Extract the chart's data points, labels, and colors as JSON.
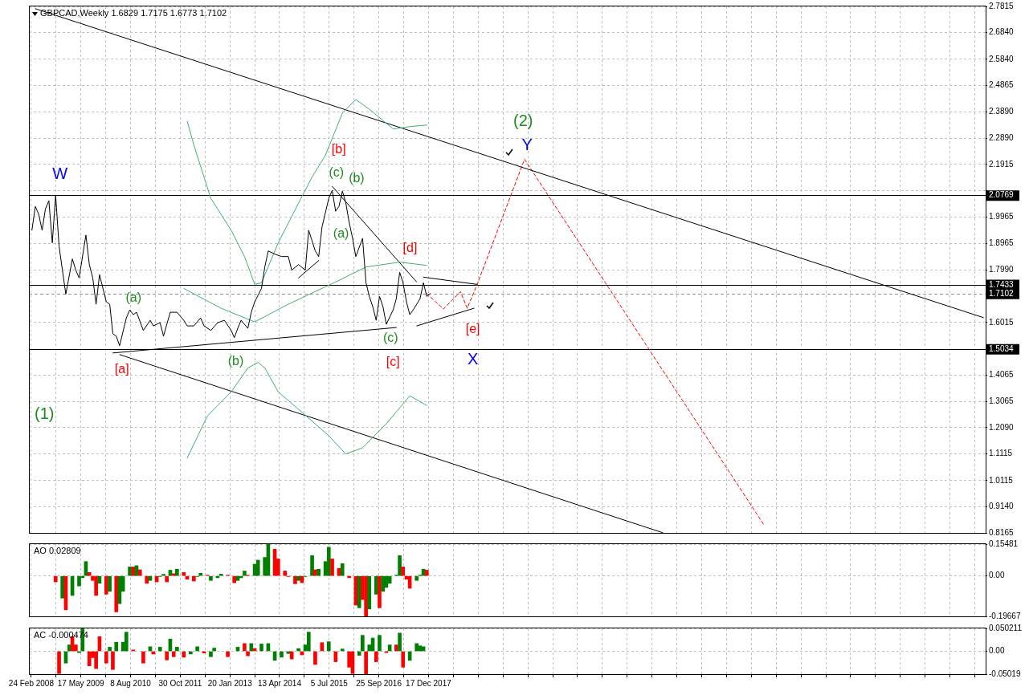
{
  "chart_data": [
    {
      "type": "line",
      "title": "GBPCAD,Weekly 1.6829 1.7175 1.6773 1.7102",
      "xlim": [
        "2008-02-03",
        "2031-09-21"
      ],
      "xticks": [
        {
          "value": "2008-02-24",
          "label": null
        },
        {
          "value": "2008-10-05",
          "label": null
        },
        {
          "value": "2009-05-17",
          "label": null
        },
        {
          "value": "2009-12-27",
          "label": null
        },
        {
          "value": "2010-08-08",
          "label": null
        },
        {
          "value": "2011-03-20",
          "label": null
        },
        {
          "value": "2011-10-30",
          "label": null
        },
        {
          "value": "2012-06-10",
          "label": null
        },
        {
          "value": "2013-01-20",
          "label": null
        },
        {
          "value": "2013-09-01",
          "label": null
        },
        {
          "value": "2014-04-13",
          "label": null
        },
        {
          "value": "2014-11-23",
          "label": null
        },
        {
          "value": "2015-07-05",
          "label": null
        },
        {
          "value": "2016-02-14",
          "label": null
        },
        {
          "value": "2016-09-25",
          "label": null
        },
        {
          "value": "2017-05-07",
          "label": null
        },
        {
          "value": "2017-12-17",
          "label": null
        },
        {
          "value": "2018-07-29",
          "label": null
        },
        {
          "value": "2019-03-10",
          "label": null
        },
        {
          "value": "2019-10-20",
          "label": null
        },
        {
          "value": "2020-05-31",
          "label": null
        },
        {
          "value": "2021-01-10",
          "label": null
        },
        {
          "value": "2021-08-22",
          "label": null
        },
        {
          "value": "2022-04-03",
          "label": null
        },
        {
          "value": "2022-11-13",
          "label": null
        },
        {
          "value": "2023-06-25",
          "label": null
        },
        {
          "value": "2024-02-04",
          "label": null
        },
        {
          "value": "2024-09-15",
          "label": null
        },
        {
          "value": "2025-04-27",
          "label": null
        },
        {
          "value": "2025-12-07",
          "label": null
        },
        {
          "value": "2026-07-19",
          "label": null
        },
        {
          "value": "2027-02-28",
          "label": null
        },
        {
          "value": "2027-10-10",
          "label": null
        },
        {
          "value": "2028-05-21",
          "label": null
        },
        {
          "value": "2028-12-31",
          "label": null
        },
        {
          "value": "2029-08-12",
          "label": null
        },
        {
          "value": "2030-03-24",
          "label": null
        },
        {
          "value": "2030-11-03",
          "label": null
        },
        {
          "value": "2031-06-15",
          "label": null
        }
      ],
      "ylim": [
        0.8165,
        2.7815
      ],
      "yticks": [
        2.7815,
        {
          "value": 2.684,
          "label": "2.6840"
        },
        {
          "value": 2.584,
          "label": "2.5840"
        },
        2.4865,
        {
          "value": 2.389,
          "label": "2.3890"
        },
        {
          "value": 2.289,
          "label": "2.2890"
        },
        2.1915,
        {
          "value": 2.094,
          "label": null
        },
        1.9965,
        1.8965,
        {
          "value": 1.799,
          "label": "1.7990"
        },
        1.6015,
        1.4065,
        1.3065,
        {
          "value": 1.209,
          "label": "1.2090"
        },
        1.1115,
        1.0115,
        {
          "value": 0.914,
          "label": "0.9140"
        },
        0.8165
      ],
      "series": [
        {
          "color": "#000000",
          "x": [
            "2008-03",
            "2008-04",
            "2008-05",
            "2008-06",
            "2008-07",
            "2008-08",
            "2008-09",
            "2008-10",
            "2008-11",
            "2008-12",
            "2009-01",
            "2009-03",
            "2009-04",
            "2009-05",
            "2009-07",
            "2009-08",
            "2009-09",
            "2009-10",
            "2009-11",
            "2010-01",
            "2010-02",
            "2010-03",
            "2010-04",
            "2010-05",
            "2010-07",
            "2010-08",
            "2010-09",
            "2010-10",
            "2010-12",
            "2011-02",
            "2011-03",
            "2011-05",
            "2011-06",
            "2011-08",
            "2011-10",
            "2011-12",
            "2012-01",
            "2012-03",
            "2012-05",
            "2012-06",
            "2012-08",
            "2012-10",
            "2012-12",
            "2013-02",
            "2013-03",
            "2013-04",
            "2013-05",
            "2013-07",
            "2013-08",
            "2013-09",
            "2013-11",
            "2013-12",
            "2014-01",
            "2014-03",
            "2014-05",
            "2014-07",
            "2014-08",
            "2014-10",
            "2014-12",
            "2015-01",
            "2015-03",
            "2015-04",
            "2015-05",
            "2015-07",
            "2015-08",
            "2015-09",
            "2015-10",
            "2015-11",
            "2015-12",
            "2016-01",
            "2016-02",
            "2016-03",
            "2016-05",
            "2016-06",
            "2016-07",
            "2016-08",
            "2016-09",
            "2016-10",
            "2016-11",
            "2016-12",
            "2017-02",
            "2017-03",
            "2017-04",
            "2017-05",
            "2017-06",
            "2017-07",
            "2017-08",
            "2017-10",
            "2017-11",
            "2017-12",
            "2018-01"
          ],
          "values": [
            1.946,
            2.035,
            2.006,
            1.946,
            2.026,
            2.056,
            1.899,
            2.077,
            1.887,
            1.797,
            1.708,
            1.839,
            1.797,
            1.768,
            1.928,
            1.818,
            1.768,
            1.67,
            1.78,
            1.679,
            1.67,
            1.56,
            1.551,
            1.515,
            1.619,
            1.649,
            1.631,
            1.64,
            1.572,
            1.61,
            1.589,
            1.601,
            1.551,
            1.64,
            1.64,
            1.61,
            1.589,
            1.589,
            1.619,
            1.589,
            1.572,
            1.601,
            1.61,
            1.572,
            1.545,
            1.58,
            1.61,
            1.58,
            1.64,
            1.679,
            1.729,
            1.809,
            1.869,
            1.857,
            1.848,
            1.848,
            1.797,
            1.818,
            1.797,
            1.946,
            1.869,
            1.848,
            1.958,
            2.065,
            2.095,
            2.017,
            2.035,
            2.092,
            2.05,
            1.976,
            1.916,
            1.848,
            1.916,
            1.75,
            1.699,
            1.661,
            1.61,
            1.699,
            1.661,
            1.595,
            1.649,
            1.69,
            1.789,
            1.75,
            1.679,
            1.631,
            1.649,
            1.69,
            1.75,
            1.699,
            1.71
          ]
        },
        {
          "color": "#3cb371",
          "x": [
            "2012-01",
            "2012-03",
            "2012-08",
            "2013-02",
            "2013-06",
            "2013-09",
            "2013-11",
            "2014-04",
            "2014-10",
            "2015-02",
            "2015-06",
            "2015-11",
            "2016-03",
            "2016-07",
            "2017-02",
            "2017-07",
            "2017-12"
          ],
          "values": [
            2.353,
            2.264,
            2.065,
            1.946,
            1.848,
            1.744,
            1.75,
            1.899,
            2.047,
            2.145,
            2.226,
            2.383,
            2.434,
            2.398,
            2.324,
            2.333,
            2.339
          ]
        },
        {
          "color": "#3cb371",
          "x": [
            "2011-12",
            "2012-11",
            "2013-09",
            "2014-07",
            "2015-10",
            "2016-06",
            "2017-04",
            "2017-12"
          ],
          "values": [
            1.729,
            1.655,
            1.604,
            1.67,
            1.759,
            1.809,
            1.827,
            1.815
          ]
        },
        {
          "color": "#3cb371",
          "x": [
            "2012-01",
            "2012-07",
            "2013-02",
            "2013-07",
            "2013-10",
            "2013-12",
            "2014-04",
            "2014-12",
            "2015-07",
            "2015-12",
            "2016-05",
            "2016-12",
            "2017-07",
            "2017-12"
          ],
          "values": [
            1.096,
            1.253,
            1.343,
            1.432,
            1.453,
            1.432,
            1.343,
            1.256,
            1.179,
            1.111,
            1.134,
            1.224,
            1.328,
            1.292
          ]
        },
        {
          "color": "#000000",
          "x": [
            "2008-04",
            "2031-09"
          ],
          "values": [
            2.773,
            1.62
          ]
        },
        {
          "color": "#000000",
          "x": [
            "2010-05",
            "2023-10"
          ],
          "values": [
            1.482,
            0.817
          ]
        },
        {
          "color": "#000000",
          "x": [
            "2010-03",
            "2017-03"
          ],
          "values": [
            1.488,
            1.583
          ]
        },
        {
          "color": "#000000",
          "x": [
            "2015-08",
            "2017-09"
          ],
          "values": [
            2.11,
            1.753
          ]
        },
        {
          "color": "#000000",
          "x": [
            "2014-10",
            "2015-04"
          ],
          "values": [
            1.768,
            1.833
          ]
        },
        {
          "color": "#000000",
          "x": [
            "2017-11",
            "2019-03"
          ],
          "values": [
            1.771,
            1.744
          ]
        },
        {
          "color": "#000000",
          "x": [
            "2017-09",
            "2019-02"
          ],
          "values": [
            1.589,
            1.655
          ]
        },
        {
          "color": "#ff0000",
          "line_style": "dashed",
          "x": [
            "2017-12",
            "2018-05",
            "2018-10",
            "2018-12",
            "2019-03",
            "2020-05",
            "2026-04"
          ],
          "values": [
            1.71,
            1.652,
            1.717,
            1.655,
            1.744,
            2.211,
            0.846
          ]
        }
      ],
      "ref_lines": [
        {
          "axis": "y",
          "value": 2.0769,
          "label": "2.0769",
          "color": "#000000"
        },
        {
          "axis": "y",
          "value": 1.7433,
          "label": "1.7433",
          "color": "#000000"
        },
        {
          "axis": "y",
          "value": 1.7102,
          "label": "1.7102",
          "color": "#909090",
          "line_style": "dashed"
        },
        {
          "axis": "y",
          "value": 1.5034,
          "label": "1.5034",
          "color": "#000000"
        }
      ],
      "annotations": [
        "W",
        "(1)",
        "[a]",
        "(a)",
        "(b)",
        "[b]",
        "(c)",
        "(b)",
        "(a)",
        "[d]",
        "(c)",
        "[c]",
        "[e]",
        "X",
        "Y",
        "(2)"
      ],
      "grid": true,
      "legend": false,
      "marker": "none",
      "tick_labels": "y"
    },
    {
      "type": "bar",
      "title": "AO 0.02809",
      "xlim": [
        "2008-02-03",
        "2031-09-21"
      ],
      "xticks": [
        {
          "value": "2008-02-24",
          "label": null
        },
        {
          "value": "2008-10-05",
          "label": null
        },
        {
          "value": "2009-05-17",
          "label": null
        },
        {
          "value": "2009-12-27",
          "label": null
        },
        {
          "value": "2010-08-08",
          "label": null
        },
        {
          "value": "2011-03-20",
          "label": null
        },
        {
          "value": "2011-10-30",
          "label": null
        },
        {
          "value": "2012-06-10",
          "label": null
        },
        {
          "value": "2013-01-20",
          "label": null
        },
        {
          "value": "2013-09-01",
          "label": null
        },
        {
          "value": "2014-04-13",
          "label": null
        },
        {
          "value": "2014-11-23",
          "label": null
        },
        {
          "value": "2015-07-05",
          "label": null
        },
        {
          "value": "2016-02-14",
          "label": null
        },
        {
          "value": "2016-09-25",
          "label": null
        },
        {
          "value": "2017-05-07",
          "label": null
        },
        {
          "value": "2017-12-17",
          "label": null
        },
        {
          "value": "2018-07-29",
          "label": null
        },
        {
          "value": "2019-03-10",
          "label": null
        },
        {
          "value": "2019-10-20",
          "label": null
        },
        {
          "value": "2020-05-31",
          "label": null
        },
        {
          "value": "2021-01-10",
          "label": null
        },
        {
          "value": "2021-08-22",
          "label": null
        },
        {
          "value": "2022-04-03",
          "label": null
        },
        {
          "value": "2022-11-13",
          "label": null
        },
        {
          "value": "2023-06-25",
          "label": null
        },
        {
          "value": "2024-02-04",
          "label": null
        },
        {
          "value": "2024-09-15",
          "label": null
        },
        {
          "value": "2025-04-27",
          "label": null
        },
        {
          "value": "2025-12-07",
          "label": null
        },
        {
          "value": "2026-07-19",
          "label": null
        },
        {
          "value": "2027-02-28",
          "label": null
        },
        {
          "value": "2027-10-10",
          "label": null
        },
        {
          "value": "2028-05-21",
          "label": null
        },
        {
          "value": "2028-12-31",
          "label": null
        },
        {
          "value": "2029-08-12",
          "label": null
        },
        {
          "value": "2030-03-24",
          "label": null
        },
        {
          "value": "2030-11-03",
          "label": null
        },
        {
          "value": "2031-06-15",
          "label": null
        }
      ],
      "ylim": [
        -0.19667,
        0.15481
      ],
      "yticks": [
        0.15481,
        {
          "value": 0,
          "label": "0.00"
        },
        -0.19667
      ],
      "x": [
        "2008-10",
        "2008-12",
        "2009-01",
        "2009-03",
        "2009-05",
        "2009-06",
        "2009-07",
        "2009-08",
        "2009-09",
        "2009-10",
        "2009-11",
        "2010-01",
        "2010-02",
        "2010-04",
        "2010-05",
        "2010-06",
        "2010-08",
        "2010-09",
        "2010-10",
        "2010-11",
        "2011-01",
        "2011-02",
        "2011-04",
        "2011-05",
        "2011-06",
        "2011-07",
        "2011-08",
        "2011-09",
        "2011-10",
        "2011-12",
        "2012-01",
        "2012-03",
        "2012-04",
        "2012-05",
        "2012-07",
        "2012-08",
        "2012-10",
        "2012-11",
        "2013-01",
        "2013-03",
        "2013-04",
        "2013-05",
        "2013-06",
        "2013-07",
        "2013-09",
        "2013-10",
        "2013-12",
        "2014-01",
        "2014-03",
        "2014-04",
        "2014-06",
        "2014-07",
        "2014-09",
        "2014-10",
        "2014-11",
        "2014-12",
        "2015-02",
        "2015-03",
        "2015-04",
        "2015-06",
        "2015-07",
        "2015-08",
        "2015-10",
        "2015-11",
        "2016-01",
        "2016-03",
        "2016-04",
        "2016-05",
        "2016-06",
        "2016-07",
        "2016-09",
        "2016-10",
        "2016-11",
        "2016-12",
        "2017-01",
        "2017-03",
        "2017-04",
        "2017-05",
        "2017-06",
        "2017-07",
        "2017-09",
        "2017-10",
        "2017-11",
        "2017-12"
      ],
      "values": [
        -0.029,
        -0.108,
        -0.165,
        -0.095,
        -0.049,
        -0.009,
        0.07,
        0.017,
        -0.022,
        -0.095,
        -0.036,
        -0.089,
        -0.075,
        -0.175,
        -0.135,
        -0.075,
        0.044,
        0.044,
        0.05,
        0.03,
        -0.036,
        -0.022,
        -0.029,
        -0.003,
        0.008,
        -0.029,
        0.028,
        0.011,
        0.033,
        0.017,
        -0.016,
        -0.025,
        -0.003,
        0.013,
        0.004,
        -0.022,
        -0.009,
        0.009,
        0.004,
        -0.033,
        -0.022,
        -0.009,
        0.024,
        0.004,
        0.057,
        0.077,
        0.09,
        0.154,
        0.13,
        0.083,
        0.024,
        -0.003,
        -0.038,
        -0.022,
        -0.033,
        -0.003,
        0.099,
        0.03,
        0.033,
        0.07,
        0.14,
        0.083,
        0.037,
        0.06,
        -0.009,
        -0.142,
        -0.155,
        -0.115,
        -0.196,
        -0.161,
        -0.089,
        -0.155,
        -0.075,
        -0.056,
        -0.036,
        0.004,
        0.099,
        0.044,
        -0.016,
        -0.06,
        -0.022,
        0.004,
        0.033,
        0.028
      ],
      "colors": [
        "#ff0000",
        "#008000",
        "#ff0000",
        "#008000",
        "#008000",
        "#008000",
        "#008000",
        "#ff0000",
        "#ff0000",
        "#ff0000",
        "#008000",
        "#ff0000",
        "#008000",
        "#ff0000",
        "#008000",
        "#008000",
        "#008000",
        "#ff0000",
        "#008000",
        "#ff0000",
        "#ff0000",
        "#008000",
        "#ff0000",
        "#008000",
        "#008000",
        "#ff0000",
        "#008000",
        "#ff0000",
        "#008000",
        "#ff0000",
        "#ff0000",
        "#ff0000",
        "#008000",
        "#008000",
        "#ff0000",
        "#008000",
        "#008000",
        "#008000",
        "#ff0000",
        "#ff0000",
        "#008000",
        "#008000",
        "#008000",
        "#ff0000",
        "#008000",
        "#008000",
        "#008000",
        "#008000",
        "#ff0000",
        "#ff0000",
        "#ff0000",
        "#ff0000",
        "#ff0000",
        "#008000",
        "#ff0000",
        "#008000",
        "#008000",
        "#ff0000",
        "#008000",
        "#008000",
        "#008000",
        "#ff0000",
        "#ff0000",
        "#008000",
        "#ff0000",
        "#ff0000",
        "#008000",
        "#ff0000",
        "#ff0000",
        "#008000",
        "#008000",
        "#ff0000",
        "#008000",
        "#008000",
        "#008000",
        "#008000",
        "#008000",
        "#ff0000",
        "#ff0000",
        "#ff0000",
        "#008000",
        "#008000",
        "#008000",
        "#ff0000"
      ],
      "grid": true,
      "legend": false,
      "tick_labels": "y"
    },
    {
      "type": "bar",
      "title": "AC -0.000474",
      "xlim": [
        "2008-02-03",
        "2031-09-21"
      ],
      "xticks": [
        {
          "value": "2008-02-24",
          "label": "24 Feb 2008"
        },
        {
          "value": "2008-10-05",
          "label": null
        },
        {
          "value": "2009-05-17",
          "label": "17 May 2009"
        },
        {
          "value": "2009-12-27",
          "label": null
        },
        {
          "value": "2010-08-08",
          "label": "8 Aug 2010"
        },
        {
          "value": "2011-03-20",
          "label": null
        },
        {
          "value": "2011-10-30",
          "label": "30 Oct 2011"
        },
        {
          "value": "2012-06-10",
          "label": null
        },
        {
          "value": "2013-01-20",
          "label": "20 Jan 2013"
        },
        {
          "value": "2013-09-01",
          "label": null
        },
        {
          "value": "2014-04-13",
          "label": "13 Apr 2014"
        },
        {
          "value": "2014-11-23",
          "label": null
        },
        {
          "value": "2015-07-05",
          "label": "5 Jul 2015"
        },
        {
          "value": "2016-02-14",
          "label": null
        },
        {
          "value": "2016-09-25",
          "label": "25 Sep 2016"
        },
        {
          "value": "2017-05-07",
          "label": null
        },
        {
          "value": "2017-12-17",
          "label": "17 Dec 2017"
        },
        {
          "value": "2018-07-29",
          "label": null
        },
        {
          "value": "2019-03-10",
          "label": null
        },
        {
          "value": "2019-10-20",
          "label": null
        },
        {
          "value": "2020-05-31",
          "label": null
        },
        {
          "value": "2021-01-10",
          "label": null
        },
        {
          "value": "2021-08-22",
          "label": null
        },
        {
          "value": "2022-04-03",
          "label": null
        },
        {
          "value": "2022-11-13",
          "label": null
        },
        {
          "value": "2023-06-25",
          "label": null
        },
        {
          "value": "2024-02-04",
          "label": null
        },
        {
          "value": "2024-09-15",
          "label": null
        },
        {
          "value": "2025-04-27",
          "label": null
        },
        {
          "value": "2025-12-07",
          "label": null
        },
        {
          "value": "2026-07-19",
          "label": null
        },
        {
          "value": "2027-02-28",
          "label": null
        },
        {
          "value": "2027-10-10",
          "label": null
        },
        {
          "value": "2028-05-21",
          "label": null
        },
        {
          "value": "2028-12-31",
          "label": null
        },
        {
          "value": "2029-08-12",
          "label": null
        },
        {
          "value": "2030-03-24",
          "label": null
        },
        {
          "value": "2030-11-03",
          "label": null
        },
        {
          "value": "2031-06-15",
          "label": null
        }
      ],
      "ylim": [
        -0.05019,
        0.050211
      ],
      "yticks": [
        0.050211,
        {
          "value": 0,
          "label": "0.00"
        },
        -0.05019
      ],
      "x": [
        "2008-11",
        "2009-01",
        "2009-02",
        "2009-03",
        "2009-04",
        "2009-05",
        "2009-06",
        "2009-08",
        "2009-09",
        "2009-10",
        "2009-11",
        "2010-01",
        "2010-02",
        "2010-03",
        "2010-04",
        "2010-06",
        "2010-07",
        "2010-09",
        "2010-12",
        "2011-02",
        "2011-03",
        "2011-05",
        "2011-07",
        "2011-08",
        "2011-09",
        "2011-10",
        "2011-12",
        "2012-02",
        "2012-04",
        "2012-06",
        "2012-08",
        "2012-09",
        "2012-11",
        "2013-01",
        "2013-04",
        "2013-06",
        "2013-07",
        "2013-08",
        "2013-09",
        "2013-11",
        "2014-01",
        "2014-03",
        "2014-05",
        "2014-07",
        "2014-08",
        "2014-10",
        "2014-11",
        "2014-12",
        "2015-01",
        "2015-03",
        "2015-05",
        "2015-07",
        "2015-09",
        "2015-11",
        "2016-01",
        "2016-02",
        "2016-04",
        "2016-05",
        "2016-06",
        "2016-07",
        "2016-08",
        "2016-09",
        "2016-10",
        "2016-12",
        "2017-01",
        "2017-03",
        "2017-04",
        "2017-05",
        "2017-07",
        "2017-09",
        "2017-10",
        "2017-11"
      ],
      "values": [
        -0.049,
        -0.026,
        0.014,
        0.032,
        0.014,
        -0.003,
        0.05,
        -0.032,
        -0.014,
        -0.038,
        0.032,
        -0.026,
        0.009,
        -0.04,
        0.02,
        0.02,
        0.042,
        0.003,
        -0.026,
        0.01,
        -0.006,
        0.009,
        -0.019,
        0.027,
        -0.012,
        0.009,
        -0.013,
        -0.006,
        0.01,
        -0.004,
        -0.012,
        0.007,
        null,
        -0.012,
        0.009,
        0.017,
        -0.01,
        0.017,
        0.006,
        0.016,
        0.017,
        -0.02,
        -0.013,
        -0.005,
        -0.017,
        0.006,
        -0.008,
        0.014,
        0.042,
        -0.029,
        0.019,
        0.021,
        -0.023,
        0.005,
        -0.035,
        -0.049,
        -0.009,
        0.035,
        -0.05,
        0.014,
        0.029,
        -0.023,
        0.035,
        -0.003,
        0.014,
        0.014,
        0.04,
        -0.035,
        -0.02,
        0.017,
        0.012,
        0.01
      ],
      "colors": [
        "#ff0000",
        "#008000",
        "#008000",
        "#ff0000",
        "#ff0000",
        "#008000",
        "#008000",
        "#ff0000",
        "#ff0000",
        "#ff0000",
        "#ff0000",
        "#ff0000",
        "#008000",
        "#ff0000",
        "#008000",
        "#008000",
        "#008000",
        "#ff0000",
        "#ff0000",
        "#008000",
        "#ff0000",
        "#008000",
        "#ff0000",
        "#008000",
        "#ff0000",
        "#008000",
        "#ff0000",
        "#008000",
        "#008000",
        "#ff0000",
        "#008000",
        "#008000",
        "#ff0000",
        "#ff0000",
        "#008000",
        "#ff0000",
        "#ff0000",
        "#008000",
        "#ff0000",
        "#008000",
        "#008000",
        "#008000",
        "#008000",
        "#008000",
        "#ff0000",
        "#008000",
        "#ff0000",
        "#008000",
        "#008000",
        "#ff0000",
        "#ff0000",
        "#008000",
        "#ff0000",
        "#008000",
        "#ff0000",
        "#ff0000",
        "#008000",
        "#008000",
        "#ff0000",
        "#008000",
        "#008000",
        "#ff0000",
        "#008000",
        "#ff0000",
        "#008000",
        "#ff0000",
        "#008000",
        "#ff0000",
        "#008000",
        "#008000",
        "#008000",
        "#008000"
      ],
      "grid": true,
      "legend": false
    }
  ]
}
